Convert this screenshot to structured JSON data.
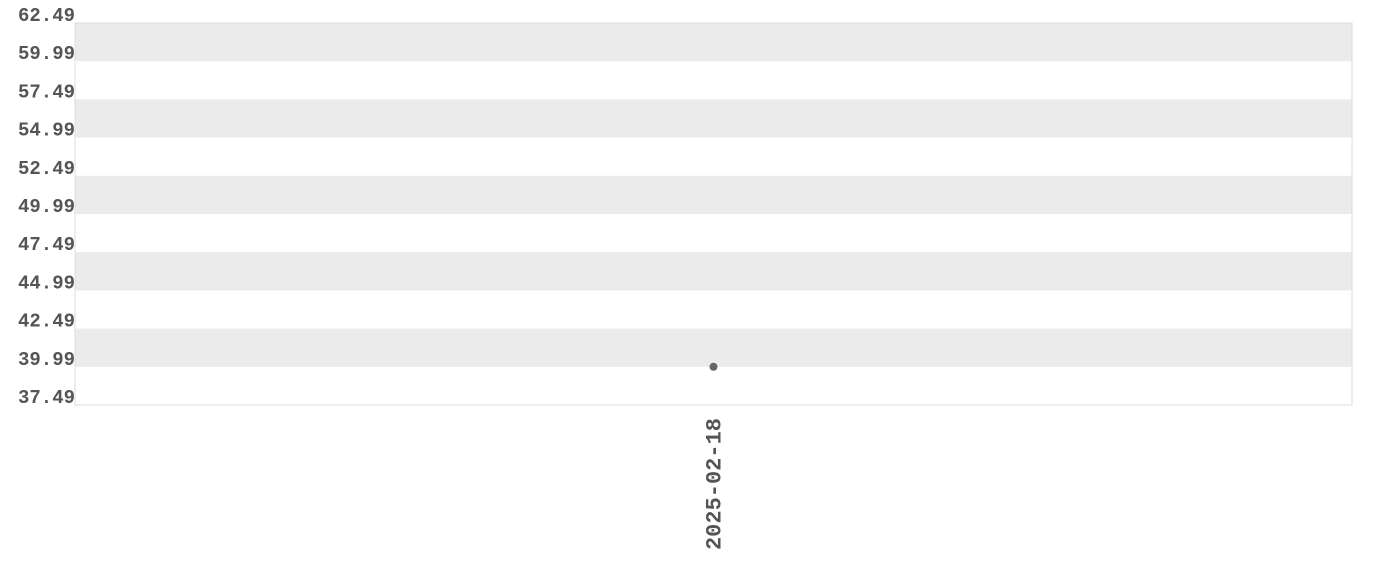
{
  "chart_data": {
    "type": "scatter",
    "categories": [
      "2025-02-18"
    ],
    "values": [
      39.99
    ],
    "color": "#666666",
    "ylim": [
      37.49,
      62.49
    ],
    "yticks": [
      37.49,
      39.99,
      42.49,
      44.99,
      47.49,
      49.99,
      52.49,
      54.99,
      57.49,
      59.99,
      62.49
    ],
    "band_color": "#ebebeb"
  }
}
